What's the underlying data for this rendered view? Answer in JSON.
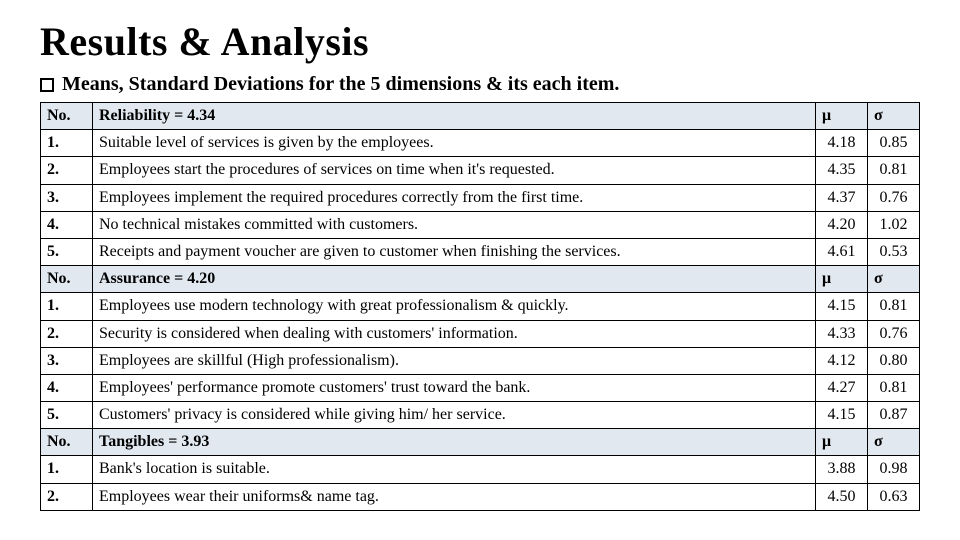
{
  "title": "Results & Analysis",
  "subtitle": "Means, Standard Deviations for the 5 dimensions & its each item.",
  "headers": {
    "no": "No.",
    "mu": "μ",
    "sigma": "σ"
  },
  "colors": {
    "header_bg": "#e1e8f0",
    "border": "#000000",
    "text": "#000000",
    "bg": "#ffffff"
  },
  "font": {
    "title_size": 40,
    "subtitle_size": 20,
    "cell_size": 16
  },
  "sections": [
    {
      "header_label": "Reliability = 4.34",
      "items": [
        {
          "no": "1.",
          "desc": "Suitable level of services is given by the employees.",
          "mu": "4.18",
          "sigma": "0.85"
        },
        {
          "no": "2.",
          "desc": "Employees start the procedures of services on time when it's requested.",
          "mu": "4.35",
          "sigma": "0.81"
        },
        {
          "no": "3.",
          "desc": "Employees implement the required procedures correctly from the first time.",
          "mu": "4.37",
          "sigma": "0.76"
        },
        {
          "no": "4.",
          "desc": "No technical mistakes committed with customers.",
          "mu": "4.20",
          "sigma": "1.02"
        },
        {
          "no": "5.",
          "desc": "Receipts and payment voucher are given to customer when finishing the services.",
          "mu": "4.61",
          "sigma": "0.53"
        }
      ]
    },
    {
      "header_label": "Assurance = 4.20",
      "items": [
        {
          "no": "1.",
          "desc": "Employees use modern technology with great professionalism & quickly.",
          "mu": "4.15",
          "sigma": "0.81"
        },
        {
          "no": "2.",
          "desc": "Security is considered when dealing with customers' information.",
          "mu": "4.33",
          "sigma": "0.76"
        },
        {
          "no": "3.",
          "desc": "Employees are skillful (High professionalism).",
          "mu": "4.12",
          "sigma": "0.80"
        },
        {
          "no": "4.",
          "desc": "Employees' performance promote customers' trust toward the bank.",
          "mu": "4.27",
          "sigma": "0.81"
        },
        {
          "no": "5.",
          "desc": "Customers' privacy is considered while giving him/ her service.",
          "mu": "4.15",
          "sigma": "0.87"
        }
      ]
    },
    {
      "header_label": "Tangibles = 3.93",
      "items": [
        {
          "no": "1.",
          "desc": "Bank's location is suitable.",
          "mu": "3.88",
          "sigma": "0.98"
        },
        {
          "no": "2.",
          "desc": "Employees wear their uniforms& name tag.",
          "mu": "4.50",
          "sigma": "0.63"
        }
      ]
    }
  ]
}
